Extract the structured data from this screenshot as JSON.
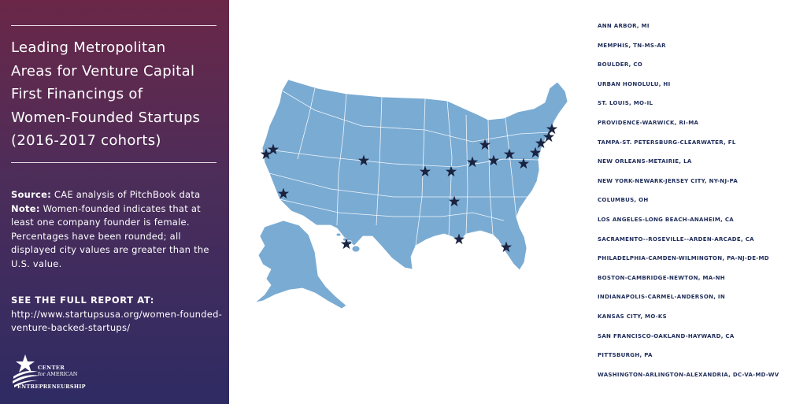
{
  "sidebar": {
    "title_lines": [
      "Leading Metropolitan",
      "Areas for Venture Capital",
      "First Financings of",
      "Women-Founded Startups",
      "(2016-2017 cohorts)"
    ],
    "source_label": "Source:",
    "source_text": "CAE analysis of PitchBook data",
    "note_label": "Note:",
    "note_text": "Women-founded indicates that at least one company founder is female. Percentages have been rounded; all displayed city values are greater than the U.S. value.",
    "report_heading": "SEE THE FULL REPORT AT:",
    "report_url": "http://www.startupsusa.org/women-founded-venture-backed-startups/",
    "logo": {
      "line1": "CENTER",
      "line2": "for AMERICAN",
      "line3": "ENTREPRENEURSHIP"
    }
  },
  "colors": {
    "map_fill": "#7aabd3",
    "map_border": "#ffffff",
    "star": "#1a2340",
    "list_text": "#1f2d5b"
  },
  "metro_areas": [
    "ANN ARBOR, MI",
    "MEMPHIS, TN-MS-AR",
    "BOULDER, CO",
    "URBAN HONOLULU, HI",
    "ST. LOUIS, MO-IL",
    "PROVIDENCE-WARWICK, RI-MA",
    "TAMPA-ST. PETERSBURG-CLEARWATER, FL",
    "NEW ORLEANS-METAIRIE, LA",
    "NEW YORK-NEWARK-JERSEY CITY, NY-NJ-PA",
    "COLUMBUS, OH",
    "LOS ANGELES-LONG BEACH-ANAHEIM, CA",
    "SACRAMENTO--ROSEVILLE--ARDEN-ARCADE, CA",
    "PHILADELPHIA-CAMDEN-WILMINGTON, PA-NJ-DE-MD",
    "BOSTON-CAMBRIDGE-NEWTON, MA-NH",
    "INDIANAPOLIS-CARMEL-ANDERSON, IN",
    "KANSAS CITY, MO-KS",
    "SAN FRANCISCO-OAKLAND-HAYWARD, CA",
    "PITTSBURGH, PA",
    "WASHINGTON-ARLINGTON-ALEXANDRIA, DC-VA-MD-WV"
  ],
  "map_markers": [
    "SAN FRANCISCO-OAKLAND-HAYWARD, CA",
    "SACRAMENTO--ROSEVILLE--ARDEN-ARCADE, CA",
    "LOS ANGELES-LONG BEACH-ANAHEIM, CA",
    "BOULDER, CO",
    "KANSAS CITY, MO-KS",
    "ST. LOUIS, MO-IL",
    "MEMPHIS, TN-MS-AR",
    "NEW ORLEANS-METAIRIE, LA",
    "INDIANAPOLIS-CARMEL-ANDERSON, IN",
    "ANN ARBOR, MI",
    "COLUMBUS, OH",
    "PITTSBURGH, PA",
    "WASHINGTON-ARLINGTON-ALEXANDRIA, DC-VA-MD-WV",
    "PHILADELPHIA-CAMDEN-WILMINGTON, PA-NJ-DE-MD",
    "NEW YORK-NEWARK-JERSEY CITY, NY-NJ-PA",
    "PROVIDENCE-WARWICK, RI-MA",
    "BOSTON-CAMBRIDGE-NEWTON, MA-NH",
    "TAMPA-ST. PETERSBURG-CLEARWATER, FL",
    "URBAN HONOLULU, HI"
  ]
}
